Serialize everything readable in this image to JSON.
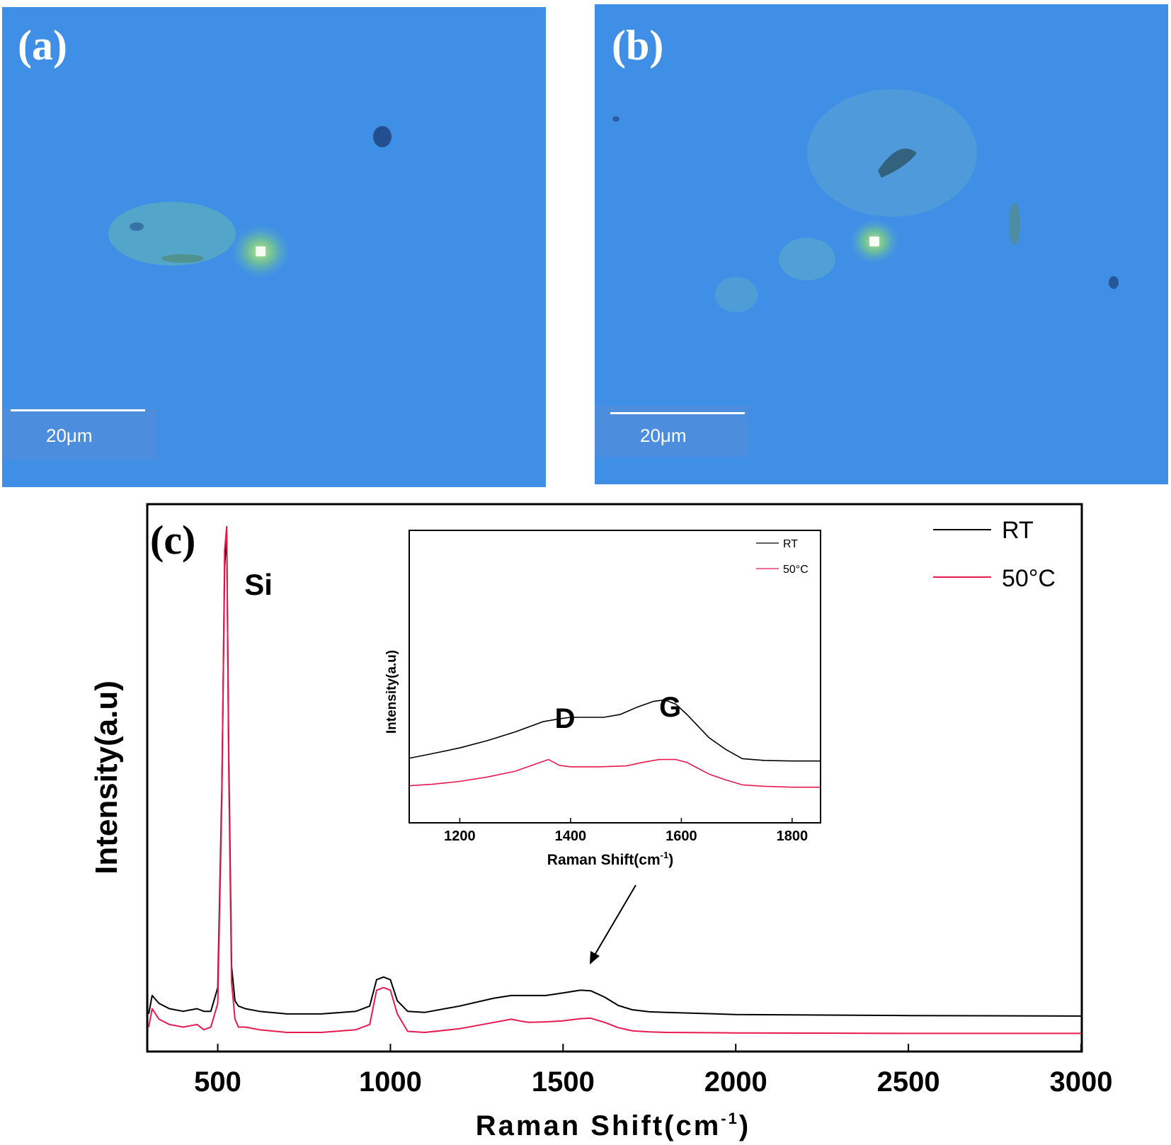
{
  "panel_a": {
    "label": "(a)",
    "scale_bar": "20μm"
  },
  "panel_b": {
    "label": "(b)",
    "scale_bar": "20μm"
  },
  "colors": {
    "photo_background": "#3f8fe6",
    "rt": "#000000",
    "c50": "#e8194f"
  },
  "chart_data": [
    {
      "panel_label": "(c)",
      "type": "line",
      "xlabel": "Raman Shift(cm",
      "xlabel_sup": "-1",
      "xlabel_close": ")",
      "ylabel": "Intensity(a.u)",
      "xlim": [
        300,
        3000
      ],
      "ylim": [
        0,
        100
      ],
      "xticks": [
        500,
        1000,
        1500,
        2000,
        2500,
        3000
      ],
      "yticks": [],
      "annotations": [
        {
          "text": "Si",
          "x": 520
        }
      ],
      "legend_position": "top-right",
      "series": [
        {
          "name": "RT",
          "x": [
            300,
            310,
            330,
            360,
            400,
            440,
            460,
            480,
            500,
            512,
            520,
            526,
            532,
            540,
            550,
            560,
            580,
            620,
            700,
            800,
            900,
            940,
            960,
            980,
            1000,
            1020,
            1050,
            1100,
            1200,
            1300,
            1350,
            1400,
            1450,
            1500,
            1550,
            1580,
            1620,
            1660,
            1700,
            1750,
            1800,
            2000,
            2500,
            3000
          ],
          "y": [
            7,
            10.5,
            9,
            8,
            7.5,
            8,
            7.5,
            7.5,
            12,
            50,
            92,
            98,
            55,
            16,
            9.5,
            8.5,
            8,
            7.5,
            7,
            7,
            7.5,
            8.5,
            13.5,
            14,
            13.5,
            9.5,
            7.5,
            7.3,
            8.5,
            10,
            10.5,
            10.5,
            10.5,
            11,
            11.5,
            11.4,
            10.2,
            8.6,
            7.8,
            7.4,
            7.3,
            6.9,
            6.7,
            6.6
          ]
        },
        {
          "name": "50°C",
          "x": [
            300,
            310,
            330,
            360,
            400,
            440,
            460,
            480,
            500,
            512,
            520,
            526,
            532,
            540,
            550,
            560,
            580,
            620,
            700,
            800,
            900,
            940,
            960,
            980,
            1000,
            1020,
            1050,
            1100,
            1200,
            1300,
            1350,
            1380,
            1400,
            1450,
            1500,
            1550,
            1580,
            1620,
            1660,
            1700,
            1750,
            1800,
            2000,
            2500,
            3000
          ],
          "y": [
            4.5,
            8,
            6,
            5,
            4.5,
            5,
            4,
            4.5,
            9,
            48,
            95,
            99.5,
            52,
            13,
            6,
            4.5,
            4.5,
            4,
            3.5,
            3.5,
            4,
            5,
            11.5,
            12,
            11.5,
            7,
            3.7,
            3.5,
            4.2,
            5.4,
            6,
            5.6,
            5.4,
            5.5,
            5.7,
            6.1,
            6.2,
            5.4,
            4.4,
            3.8,
            3.6,
            3.5,
            3.4,
            3.3,
            3.3
          ]
        }
      ]
    },
    {
      "type": "line",
      "inset": true,
      "xlabel": "Raman Shift(cm",
      "xlabel_sup": "-1",
      "xlabel_close": ")",
      "ylabel": "Intensity(a.u)",
      "xlim": [
        1110,
        1850
      ],
      "ylim": [
        0,
        100
      ],
      "xticks": [
        1200,
        1400,
        1600,
        1800
      ],
      "yticks": [],
      "annotations": [
        {
          "text": "D",
          "x": 1390
        },
        {
          "text": "G",
          "x": 1580
        }
      ],
      "legend_position": "top-right",
      "series": [
        {
          "name": "RT",
          "x": [
            1110,
            1150,
            1200,
            1250,
            1300,
            1350,
            1380,
            1400,
            1430,
            1460,
            1490,
            1520,
            1550,
            1570,
            1590,
            1610,
            1630,
            1650,
            1680,
            1710,
            1750,
            1800,
            1850
          ],
          "y": [
            22,
            23.5,
            25.5,
            28,
            31,
            34.5,
            35.5,
            36,
            36,
            36,
            37,
            39.5,
            41.5,
            42,
            40.5,
            37,
            33,
            29,
            25,
            21.8,
            21.2,
            21,
            21
          ]
        },
        {
          "name": "50°C",
          "x": [
            1110,
            1150,
            1200,
            1250,
            1300,
            1330,
            1360,
            1380,
            1400,
            1450,
            1500,
            1530,
            1560,
            1590,
            1610,
            1630,
            1650,
            1680,
            1710,
            1750,
            1800,
            1850
          ],
          "y": [
            12.5,
            13,
            14,
            15.5,
            17.5,
            19.5,
            21.5,
            19.5,
            19,
            19,
            19.3,
            20.5,
            21.5,
            21.5,
            20.5,
            18.5,
            16.5,
            14.5,
            12.8,
            12.3,
            12,
            12
          ]
        }
      ]
    }
  ]
}
